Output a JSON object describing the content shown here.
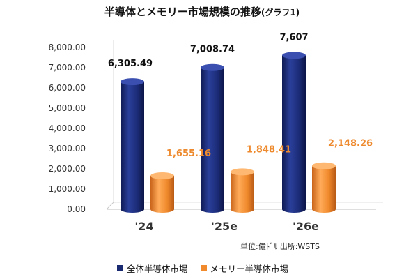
{
  "chart_data": {
    "type": "bar",
    "title": "半導体とメモリー市場規模の推移",
    "title_suffix": "(グラフ1)",
    "categories": [
      "'24",
      "'25e",
      "'26e"
    ],
    "series": [
      {
        "name": "全体半導体市場",
        "values": [
          6305.49,
          7008.74,
          7607
        ],
        "labels": [
          "6,305.49",
          "7,008.74",
          "7,607"
        ],
        "color": "#1a2a72"
      },
      {
        "name": "メモリー半導体市場",
        "values": [
          1655.16,
          1848.41,
          2148.26
        ],
        "labels": [
          "1,655.16",
          "1,848.41",
          "2,148.26"
        ],
        "color": "#f08a2c"
      }
    ],
    "y_ticks": [
      "0.00",
      "1,000.00",
      "2,000.00",
      "3,000.00",
      "4,000.00",
      "5,000.00",
      "6,000.00",
      "7,000.00",
      "8,000.00"
    ],
    "ylim": [
      0,
      8000
    ],
    "grid": false,
    "style": "3d-cylinder",
    "legend_position": "bottom"
  },
  "unit_note": "単位:億ﾄﾞﾙ 出所:WSTS"
}
